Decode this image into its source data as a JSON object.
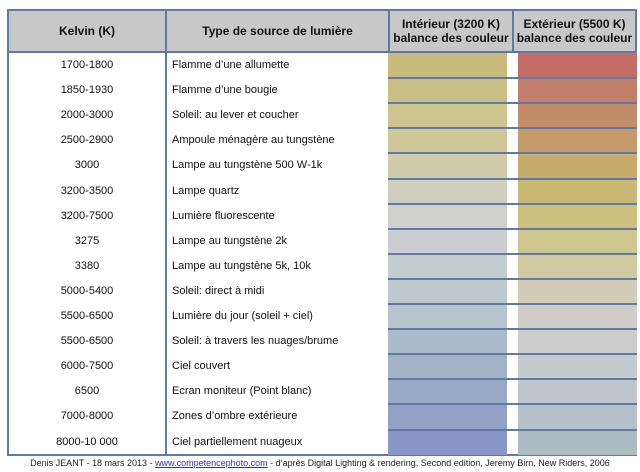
{
  "headers": {
    "kelvin": "Kelvin (K)",
    "source": "Type de source de lumière",
    "interior_1": "Intérieur (3200 K)",
    "interior_2": "balance des couleur",
    "exterior_1": "Extérieur (5500 K)",
    "exterior_2": "balance des couleur"
  },
  "rows": [
    {
      "kelvin": "1700-1800",
      "source": "Flamme d’une allumette",
      "interior_color": "#c9bb7c",
      "exterior_color": "#c46c66"
    },
    {
      "kelvin": "1850-1930",
      "source": "Flamme d’une bougie",
      "interior_color": "#cabf82",
      "exterior_color": "#c47f6a"
    },
    {
      "kelvin": "2000-3000",
      "source": "Soleil: au lever et coucher",
      "interior_color": "#cdc48e",
      "exterior_color": "#c48d6a"
    },
    {
      "kelvin": "2500-2900",
      "source": "Ampoule ménagère au tungstène",
      "interior_color": "#cfc79a",
      "exterior_color": "#c59a6a"
    },
    {
      "kelvin": "3000",
      "source": "Lampe au tungstène 500 W-1k",
      "interior_color": "#d0cca9",
      "exterior_color": "#c6aa6c"
    },
    {
      "kelvin": "3200-3500",
      "source": "Lampe quartz",
      "interior_color": "#d0cfbe",
      "exterior_color": "#c8b874"
    },
    {
      "kelvin": "3200-7500",
      "source": "Lumière fluorescente",
      "interior_color": "#cfcfcb",
      "exterior_color": "#cbc07e"
    },
    {
      "kelvin": "3275",
      "source": "Lampe au tungstène 2k",
      "interior_color": "#cbcdd0",
      "exterior_color": "#cdc68e"
    },
    {
      "kelvin": "3380",
      "source": "Lampe au tungstène 5k, 10k",
      "interior_color": "#c5ccd0",
      "exterior_color": "#d0ca9e"
    },
    {
      "kelvin": "5000-5400",
      "source": "Soleil: direct à midi",
      "interior_color": "#bec9ce",
      "exterior_color": "#d0ccb6"
    },
    {
      "kelvin": "5500-6500",
      "source": "Lumière du jour (soleil + ciel)",
      "interior_color": "#b6c4cc",
      "exterior_color": "#cfcdc6"
    },
    {
      "kelvin": "5500-6500",
      "source": "Soleil: à travers les nuages/brume",
      "interior_color": "#abbbc9",
      "exterior_color": "#cbcccb"
    },
    {
      "kelvin": "6000-7500",
      "source": "Ciel couvert",
      "interior_color": "#a3b3c6",
      "exterior_color": "#c5cacc"
    },
    {
      "kelvin": "6500",
      "source": "Ecran moniteur (Point blanc)",
      "interior_color": "#9aaac6",
      "exterior_color": "#bec6cb"
    },
    {
      "kelvin": "7000-8000",
      "source": "Zones d’ombre extérieure",
      "interior_color": "#93a1c6",
      "exterior_color": "#b5c1c6"
    },
    {
      "kelvin": "8000-10 000",
      "source": "Ciel partiellement nuageux",
      "interior_color": "#8996c8",
      "exterior_color": "#abbcc2"
    }
  ],
  "footer": {
    "before": "Denis JEANT - 18 mars 2013 - ",
    "link": "www.competencephoto.com",
    "after": " - d’après Digital Lighting & rendering, Second edition, Jeremy Birn, New Riders, 2006"
  }
}
